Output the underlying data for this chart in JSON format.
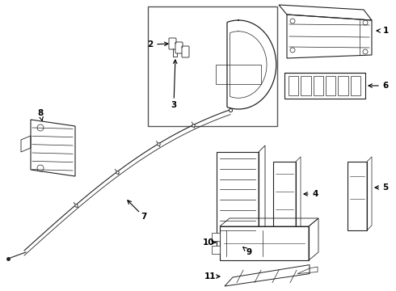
{
  "background_color": "#ffffff",
  "line_color": "#222222",
  "text_color": "#000000",
  "fig_width": 4.9,
  "fig_height": 3.6,
  "dpi": 100
}
